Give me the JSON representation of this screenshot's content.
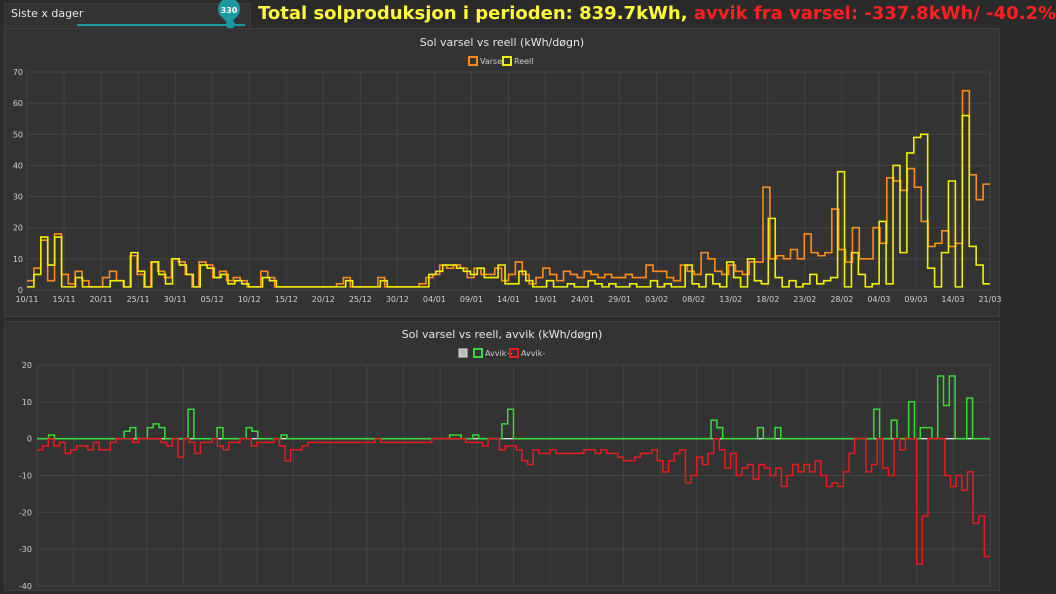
{
  "slider": {
    "label": "Siste x dager",
    "value": "330"
  },
  "summary": {
    "total_text": "Total solproduksjon i perioden: 839.7kWh,",
    "deviation_text": "avvik fra varsel: -337.8kWh/ -40.2%"
  },
  "colors": {
    "varsel": "#ff8c1a",
    "reell": "#f0f000",
    "avvik_pos": "#33dd33",
    "avvik_neg": "#e81c1c",
    "zero_line": "#dddddd",
    "grid": "#444444"
  },
  "chart_data": [
    {
      "type": "line",
      "title": "Sol varsel vs reell (kWh/døgn)",
      "legend": [
        "Varsel",
        "Reell"
      ],
      "legend_position": "top-center",
      "step": true,
      "grid": true,
      "ylim": [
        0,
        70
      ],
      "yticks": [
        0,
        10,
        20,
        30,
        40,
        50,
        60,
        70
      ],
      "xticks": [
        "10/11",
        "15/11",
        "20/11",
        "25/11",
        "30/11",
        "05/12",
        "10/12",
        "15/12",
        "20/12",
        "25/12",
        "30/12",
        "04/01",
        "09/01",
        "14/01",
        "19/01",
        "24/01",
        "29/01",
        "03/02",
        "08/02",
        "13/02",
        "18/02",
        "23/02",
        "28/02",
        "04/03",
        "09/03",
        "14/03",
        "21/03"
      ],
      "series": [
        {
          "name": "Varsel",
          "values": [
            3,
            7,
            16,
            3,
            18,
            5,
            2,
            6,
            3,
            1,
            1,
            4,
            6,
            3,
            1,
            11,
            5,
            1,
            9,
            6,
            4,
            10,
            9,
            5,
            1,
            9,
            8,
            4,
            6,
            3,
            4,
            3,
            1,
            1,
            6,
            4,
            1,
            1,
            1,
            1,
            1,
            1,
            1,
            1,
            1,
            2,
            4,
            1,
            1,
            1,
            1,
            4,
            1,
            1,
            1,
            1,
            1,
            2,
            4,
            5,
            8,
            7,
            8,
            7,
            4,
            7,
            5,
            5,
            7,
            3,
            5,
            9,
            5,
            2,
            4,
            7,
            5,
            3,
            6,
            5,
            4,
            6,
            5,
            4,
            5,
            4,
            4,
            5,
            4,
            4,
            8,
            6,
            6,
            4,
            3,
            8,
            6,
            5,
            12,
            10,
            6,
            5,
            8,
            6,
            5,
            9,
            9,
            33,
            10,
            11,
            10,
            13,
            10,
            18,
            12,
            11,
            12,
            26,
            13,
            9,
            20,
            10,
            10,
            20,
            15,
            36,
            35,
            32,
            39,
            33,
            22,
            14,
            15,
            19,
            14,
            15,
            64,
            37,
            29,
            34
          ]
        },
        {
          "name": "Reell",
          "values": [
            1,
            5,
            17,
            8,
            17,
            1,
            1,
            4,
            1,
            1,
            1,
            1,
            3,
            3,
            1,
            12,
            6,
            1,
            9,
            5,
            2,
            10,
            8,
            5,
            1,
            8,
            7,
            4,
            5,
            2,
            3,
            2,
            1,
            1,
            4,
            3,
            1,
            1,
            1,
            1,
            1,
            1,
            1,
            1,
            1,
            1,
            3,
            1,
            1,
            1,
            1,
            3,
            1,
            1,
            1,
            1,
            1,
            1,
            5,
            6,
            8,
            8,
            7,
            6,
            5,
            7,
            4,
            4,
            8,
            2,
            2,
            6,
            3,
            1,
            1,
            3,
            1,
            1,
            2,
            1,
            1,
            3,
            2,
            1,
            2,
            1,
            1,
            2,
            1,
            1,
            3,
            1,
            2,
            1,
            1,
            8,
            2,
            1,
            5,
            2,
            1,
            9,
            4,
            1,
            10,
            3,
            2,
            23,
            4,
            1,
            3,
            1,
            2,
            5,
            2,
            3,
            4,
            38,
            1,
            12,
            5,
            1,
            2,
            22,
            2,
            40,
            12,
            44,
            49,
            50,
            7,
            1,
            12,
            35,
            1,
            56,
            14,
            8,
            2
          ]
        }
      ]
    },
    {
      "type": "line",
      "title": "Sol varsel vs reell, avvik (kWh/døgn)",
      "legend": [
        "",
        "Avvik+",
        "Avvik-"
      ],
      "legend_position": "top-center",
      "step": true,
      "grid": true,
      "ylim": [
        -40,
        20
      ],
      "yticks": [
        20,
        10,
        0,
        -10,
        -20,
        -30,
        -40
      ],
      "series": [
        {
          "name": "Avvik+",
          "values": [
            0,
            0,
            1,
            0,
            0,
            0,
            0,
            0,
            0,
            0,
            0,
            0,
            0,
            0,
            0,
            2,
            3,
            0,
            0,
            3,
            4,
            3,
            0,
            0,
            0,
            0,
            8,
            0,
            0,
            0,
            0,
            3,
            0,
            0,
            0,
            0,
            3,
            2,
            0,
            0,
            0,
            0,
            1,
            0,
            0,
            0,
            0,
            0,
            0,
            0,
            0,
            0,
            0,
            0,
            0,
            0,
            0,
            0,
            0,
            0,
            0,
            0,
            0,
            0,
            0,
            0,
            0,
            0,
            0,
            0,
            0,
            1,
            1,
            0,
            0,
            1,
            0,
            0,
            0,
            0,
            4,
            8,
            0,
            0,
            0,
            0,
            0,
            0,
            0,
            0,
            0,
            0,
            0,
            0,
            0,
            0,
            0,
            0,
            0,
            0,
            0,
            0,
            0,
            0,
            0,
            0,
            0,
            0,
            0,
            0,
            0,
            0,
            0,
            0,
            0,
            0,
            5,
            3,
            0,
            0,
            0,
            0,
            0,
            0,
            3,
            0,
            0,
            3,
            0,
            0,
            0,
            0,
            0,
            0,
            0,
            0,
            0,
            0,
            0,
            0,
            0,
            0,
            0,
            0,
            8,
            0,
            0,
            5,
            0,
            0,
            10,
            0,
            3,
            3,
            0,
            17,
            9,
            17,
            0,
            0,
            11,
            0,
            0,
            0
          ]
        },
        {
          "name": "Avvik-",
          "values": [
            -3,
            -2,
            0,
            -2,
            -1,
            -4,
            -3,
            -2,
            -2,
            -3,
            -1,
            -3,
            -3,
            -1,
            0,
            0,
            0,
            -1,
            0,
            0,
            0,
            0,
            -1,
            -2,
            0,
            -5,
            0,
            -1,
            -4,
            -1,
            -1,
            0,
            -2,
            -3,
            -1,
            -1,
            0,
            0,
            -2,
            -1,
            -1,
            -1,
            0,
            -2,
            -6,
            -3,
            -3,
            -2,
            -1,
            -1,
            -1,
            -1,
            -1,
            -1,
            -1,
            -1,
            -1,
            -1,
            -1,
            -1,
            0,
            -1,
            -1,
            -1,
            -1,
            -1,
            -1,
            -1,
            -1,
            -1,
            0,
            0,
            0,
            0,
            0,
            0,
            -1,
            -1,
            -1,
            -2,
            0,
            0,
            -3,
            -2,
            -2,
            -3,
            -6,
            -7,
            -3,
            -4,
            -4,
            -3,
            -4,
            -4,
            -4,
            -4,
            -4,
            -3,
            -3,
            -4,
            -3,
            -4,
            -4,
            -5,
            -6,
            -6,
            -5,
            -4,
            -4,
            -3,
            -6,
            -9,
            -6,
            -4,
            -3,
            -12,
            -10,
            -5,
            -7,
            -4,
            0,
            -3,
            -8,
            -4,
            -10,
            -8,
            -7,
            -11,
            -7,
            -8,
            -10,
            -8,
            -13,
            -10,
            -7,
            -9,
            -7,
            -9,
            -6,
            -10,
            -13,
            -12,
            -13,
            -9,
            -4,
            0,
            0,
            -9,
            -7,
            0,
            -8,
            -10,
            0,
            -3,
            0,
            0,
            -34,
            -21,
            0,
            0,
            0,
            -10,
            -13,
            -10,
            -14,
            -9,
            -23,
            -21,
            -32
          ]
        }
      ]
    }
  ]
}
